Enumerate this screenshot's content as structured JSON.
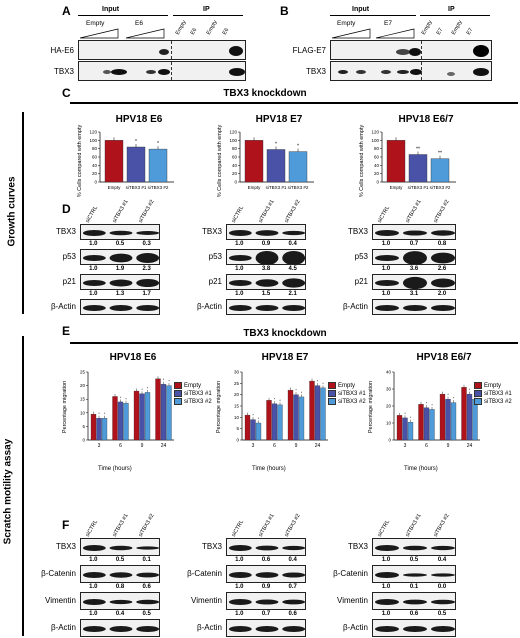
{
  "panels": {
    "A": "A",
    "B": "B",
    "C": "C",
    "D": "D",
    "E": "E",
    "F": "F"
  },
  "panelA": {
    "input": "Input",
    "ip": "IP",
    "lanes_input": [
      "Empty",
      "E6"
    ],
    "lanes_ip": [
      "Empty",
      "E6",
      "Empty",
      "E6"
    ],
    "rows": [
      "HA-E6",
      "TBX3"
    ]
  },
  "panelB": {
    "input": "Input",
    "ip": "IP",
    "lanes_input": [
      "Empty",
      "E7"
    ],
    "lanes_ip": [
      "Empty",
      "E7",
      "Empty",
      "E7"
    ],
    "rows": [
      "FLAG-E7",
      "TBX3"
    ]
  },
  "knockdown_title": "TBX3 knockdown",
  "side_growth": "Growth curves",
  "side_scratch": "Scratch motility assay",
  "colors": {
    "empty": "#b0121b",
    "sitbx1": "#4a52a8",
    "sitbx2": "#4f9ad8"
  },
  "panelC": {
    "ylabel": "% Cells compared with empty",
    "charts": [
      {
        "title": "HPV18 E6",
        "xt": [
          "Empty",
          "siTBX3 #1",
          "siTBX3 #2"
        ],
        "stars": [
          "",
          "*",
          "*"
        ]
      },
      {
        "title": "HPV18 E7",
        "xt": [
          "Empty",
          "siTBX3 #1",
          "siTBX3 #2"
        ],
        "stars": [
          "",
          "*",
          "*"
        ]
      },
      {
        "title": "HPV18 E6/7",
        "xt": [
          "Empty",
          "siTBX3 #1",
          "siTBX3 #2"
        ],
        "stars": [
          "",
          "**",
          "**"
        ]
      }
    ],
    "yticks": [
      "0",
      "20",
      "40",
      "60",
      "80",
      "100",
      "120"
    ]
  },
  "chart_data": [
    {
      "type": "bar",
      "title": "HPV18 E6",
      "categories": [
        "Empty",
        "siTBX3 #1",
        "siTBX3 #2"
      ],
      "values": [
        100,
        84,
        79
      ],
      "ylim": [
        0,
        120
      ],
      "ylabel": "% Cells compared with empty"
    },
    {
      "type": "bar",
      "title": "HPV18 E7",
      "categories": [
        "Empty",
        "siTBX3 #1",
        "siTBX3 #2"
      ],
      "values": [
        100,
        78,
        73
      ],
      "ylim": [
        0,
        120
      ],
      "ylabel": "% Cells compared with empty"
    },
    {
      "type": "bar",
      "title": "HPV18 E6/7",
      "categories": [
        "Empty",
        "siTBX3 #1",
        "siTBX3 #2"
      ],
      "values": [
        100,
        66,
        56
      ],
      "ylim": [
        0,
        120
      ],
      "ylabel": "% Cells compared with empty"
    },
    {
      "type": "bar",
      "title": "HPV18 E6",
      "categories": [
        "3",
        "6",
        "9",
        "24"
      ],
      "xlabel": "Time (hours)",
      "ylabel": "Percentage migration",
      "ylim": [
        0,
        25
      ],
      "series": [
        {
          "name": "Empty",
          "values": [
            9.5,
            16,
            18,
            22.5
          ]
        },
        {
          "name": "siTBX3 #1",
          "values": [
            8,
            14,
            17,
            20.5
          ]
        },
        {
          "name": "siTBX3 #2",
          "values": [
            8,
            13.5,
            17.5,
            20
          ]
        }
      ]
    },
    {
      "type": "bar",
      "title": "HPV18 E7",
      "categories": [
        "3",
        "6",
        "9",
        "24"
      ],
      "xlabel": "Time (hours)",
      "ylabel": "Percentage migration",
      "ylim": [
        0,
        30
      ],
      "series": [
        {
          "name": "Empty",
          "values": [
            11,
            17.5,
            22,
            26
          ]
        },
        {
          "name": "siTBX3 #1",
          "values": [
            9,
            16,
            20,
            24
          ]
        },
        {
          "name": "siTBX3 #2",
          "values": [
            7.5,
            15.5,
            19,
            23
          ]
        }
      ]
    },
    {
      "type": "bar",
      "title": "HPV18 E6/7",
      "categories": [
        "3",
        "6",
        "9",
        "24"
      ],
      "xlabel": "Time (hours)",
      "ylabel": "Percentage migration",
      "ylim": [
        0,
        40
      ],
      "series": [
        {
          "name": "Empty",
          "values": [
            14.5,
            21,
            27,
            31
          ]
        },
        {
          "name": "siTBX3 #1",
          "values": [
            13,
            19,
            24,
            27
          ]
        },
        {
          "name": "siTBX3 #2",
          "values": [
            10.5,
            18,
            22,
            24
          ]
        }
      ]
    }
  ],
  "panelD": [
    {
      "lanes": [
        "siCTRL",
        "siTBX3 #1",
        "siTBX3 #2"
      ],
      "rows": [
        {
          "name": "TBX3",
          "vals": [
            "1.0",
            "0.5",
            "0.3"
          ]
        },
        {
          "name": "p53",
          "vals": [
            "1.0",
            "1.9",
            "2.3"
          ]
        },
        {
          "name": "p21",
          "vals": [
            "1.0",
            "1.3",
            "1.7"
          ]
        },
        {
          "name": "β-Actin",
          "vals": []
        }
      ]
    },
    {
      "lanes": [
        "siCTRL",
        "siTBX3 #1",
        "siTBX3 #2"
      ],
      "rows": [
        {
          "name": "TBX3",
          "vals": [
            "1.0",
            "0.9",
            "0.4"
          ]
        },
        {
          "name": "p53",
          "vals": [
            "1.0",
            "3.8",
            "4.5"
          ]
        },
        {
          "name": "p21",
          "vals": [
            "1.0",
            "1.5",
            "2.1"
          ]
        },
        {
          "name": "β-Actin",
          "vals": []
        }
      ]
    },
    {
      "lanes": [
        "siCTRL",
        "siTBX3 #1",
        "siTBX3 #2"
      ],
      "rows": [
        {
          "name": "TBX3",
          "vals": [
            "1.0",
            "0.7",
            "0.8"
          ]
        },
        {
          "name": "p53",
          "vals": [
            "1.0",
            "3.6",
            "2.6"
          ]
        },
        {
          "name": "p21",
          "vals": [
            "1.0",
            "3.1",
            "2.0"
          ]
        },
        {
          "name": "β-Actin",
          "vals": []
        }
      ]
    }
  ],
  "panelE": {
    "titles": [
      "HPV18 E6",
      "HPV18 E7",
      "HPV18 E6/7"
    ],
    "ylabel": "Percentage migration",
    "xlabel": "Time (hours)",
    "legend": [
      "Empty",
      "siTBX3 #1",
      "siTBX3 #2"
    ]
  },
  "panelF": [
    {
      "lanes": [
        "siCTRL",
        "siTBX3 #1",
        "siTBX3 #2"
      ],
      "rows": [
        {
          "name": "TBX3",
          "vals": [
            "1.0",
            "0.5",
            "0.1"
          ]
        },
        {
          "name": "β-Catenin",
          "vals": [
            "1.0",
            "0.8",
            "0.6"
          ]
        },
        {
          "name": "Vimentin",
          "vals": [
            "1.0",
            "0.4",
            "0.5"
          ]
        },
        {
          "name": "β-Actin",
          "vals": []
        }
      ]
    },
    {
      "lanes": [
        "siCTRL",
        "siTBX3 #1",
        "siTBX3 #2"
      ],
      "rows": [
        {
          "name": "TBX3",
          "vals": [
            "1.0",
            "0.6",
            "0.4"
          ]
        },
        {
          "name": "β-Catenin",
          "vals": [
            "1.0",
            "0.9",
            "0.7"
          ]
        },
        {
          "name": "Vimentin",
          "vals": [
            "1.0",
            "0.7",
            "0.6"
          ]
        },
        {
          "name": "β-Actin",
          "vals": []
        }
      ]
    },
    {
      "lanes": [
        "siCTRL",
        "siTBX3 #1",
        "siTBX3 #2"
      ],
      "rows": [
        {
          "name": "TBX3",
          "vals": [
            "1.0",
            "0.5",
            "0.4"
          ]
        },
        {
          "name": "β-Catenin",
          "vals": [
            "1.0",
            "0.1",
            "0.0"
          ]
        },
        {
          "name": "Vimentin",
          "vals": [
            "1.0",
            "0.6",
            "0.5"
          ]
        },
        {
          "name": "β-Actin",
          "vals": []
        }
      ]
    }
  ]
}
